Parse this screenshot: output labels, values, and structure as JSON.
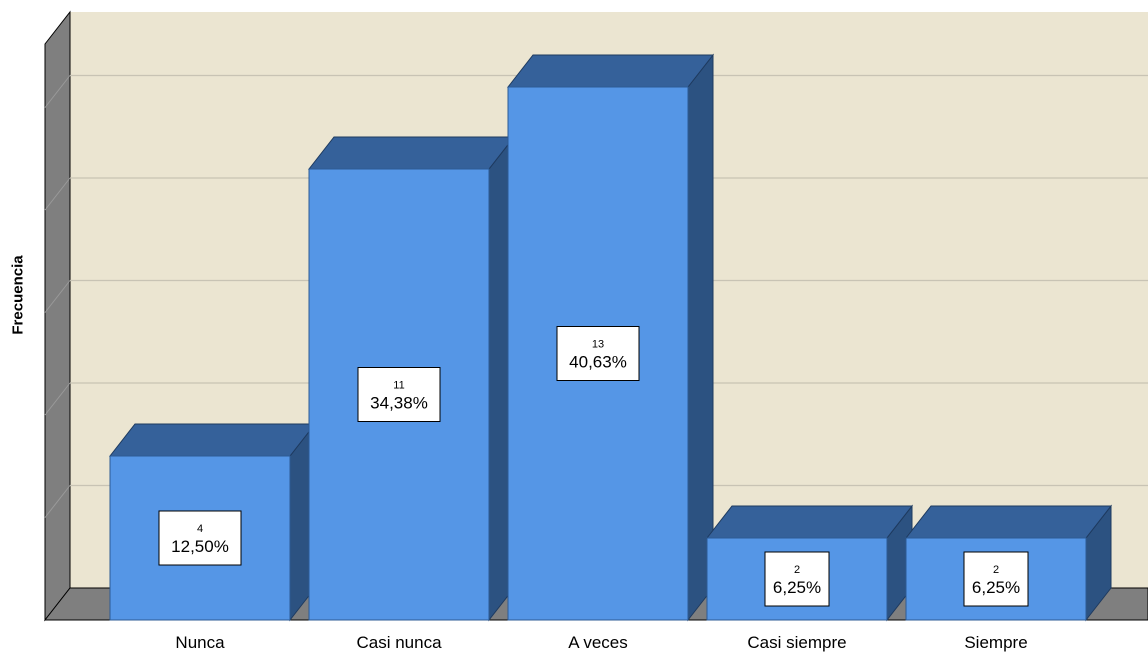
{
  "chart_data": {
    "type": "bar",
    "categories": [
      "Nunca",
      "Casi nunca",
      "A veces",
      "Casi siempre",
      "Siempre"
    ],
    "values": [
      4,
      11,
      13,
      2,
      2
    ],
    "percent_labels": [
      "12,50%",
      "34,38%",
      "40,63%",
      "6,25%",
      "6,25%"
    ],
    "xlabel": "",
    "ylabel": "Frecuencia",
    "ylim": [
      0,
      13
    ],
    "grid": true,
    "style": "3d",
    "colors": {
      "bar_front": "#5596e6",
      "bar_top": "#35619a",
      "bar_side": "#2c5281",
      "plot_background": "#ebe5d1",
      "wall": "#7f7f7f",
      "grid": "#c8c3b4"
    }
  }
}
